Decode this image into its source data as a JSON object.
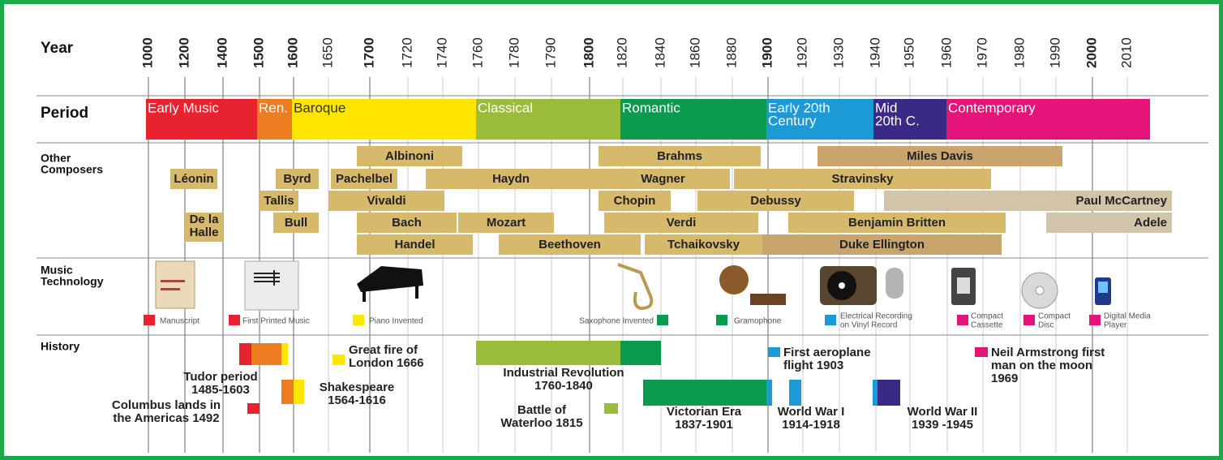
{
  "row_labels": {
    "year": "Year",
    "period": "Period",
    "composers": [
      "Other",
      "Composers"
    ],
    "technology": [
      "Music",
      "Technology"
    ],
    "history": "History"
  },
  "years": [
    1000,
    1200,
    1400,
    1500,
    1600,
    1650,
    1700,
    1720,
    1740,
    1760,
    1780,
    1790,
    1800,
    1820,
    1840,
    1860,
    1880,
    1900,
    1920,
    1930,
    1940,
    1950,
    1960,
    1970,
    1980,
    1990,
    2000,
    2010
  ],
  "periods": [
    {
      "label": [
        "Early Music"
      ],
      "color": "#e8222e"
    },
    {
      "label": [
        "Ren."
      ],
      "color": "#ee7d22"
    },
    {
      "label": [
        "Baroque"
      ],
      "color": "#ffe500"
    },
    {
      "label": [
        "Classical"
      ],
      "color": "#9bbb3a"
    },
    {
      "label": [
        "Romantic"
      ],
      "color": "#0a9b4e"
    },
    {
      "label": [
        "Early 20th",
        "Century"
      ],
      "color": "#1b9ad6"
    },
    {
      "label": [
        "Mid",
        "20th C."
      ],
      "color": "#3a2a85"
    },
    {
      "label": [
        "Contemporary"
      ],
      "color": "#e5147a"
    }
  ],
  "composers": [
    {
      "label": [
        "Albinoni"
      ],
      "color": "#d6b96b"
    },
    {
      "label": [
        "Brahms"
      ],
      "color": "#d6b96b"
    },
    {
      "label": [
        "Miles Davis"
      ],
      "color": "#c9a46c"
    },
    {
      "label": [
        "Léonin"
      ],
      "color": "#d6b96b"
    },
    {
      "label": [
        "Byrd"
      ],
      "color": "#d6b96b"
    },
    {
      "label": [
        "Pachelbel"
      ],
      "color": "#d6b96b"
    },
    {
      "label": [
        "Haydn"
      ],
      "color": "#d6b96b"
    },
    {
      "label": [
        "Wagner"
      ],
      "color": "#d6b96b"
    },
    {
      "label": [
        "Stravinsky"
      ],
      "color": "#d6b96b"
    },
    {
      "label": [
        "Tallis"
      ],
      "color": "#d6b96b"
    },
    {
      "label": [
        "Vivaldi"
      ],
      "color": "#d6b96b"
    },
    {
      "label": [
        "Chopin"
      ],
      "color": "#d6b96b"
    },
    {
      "label": [
        "Debussy"
      ],
      "color": "#d6b96b"
    },
    {
      "label": [
        "Paul McCartney"
      ],
      "color": "#d2c4a8"
    },
    {
      "label": [
        "De la",
        "Halle"
      ],
      "color": "#d6b96b"
    },
    {
      "label": [
        "Bull"
      ],
      "color": "#d6b96b"
    },
    {
      "label": [
        "Bach"
      ],
      "color": "#d6b96b"
    },
    {
      "label": [
        "Mozart"
      ],
      "color": "#d6b96b"
    },
    {
      "label": [
        "Verdi"
      ],
      "color": "#d6b96b"
    },
    {
      "label": [
        "Benjamin Britten"
      ],
      "color": "#d6b96b"
    },
    {
      "label": [
        "Adele"
      ],
      "color": "#d2c4a8"
    },
    {
      "label": [
        "Handel"
      ],
      "color": "#d6b96b"
    },
    {
      "label": [
        "Beethoven"
      ],
      "color": "#d6b96b"
    },
    {
      "label": [
        "Tchaikovsky"
      ],
      "color": "#d6b96b"
    },
    {
      "label": [
        "Duke Ellington"
      ],
      "color": "#c9a46c"
    }
  ],
  "technology": [
    {
      "label": [
        "Manuscript"
      ],
      "color": "#e8222e"
    },
    {
      "label": [
        "First Printed Music"
      ],
      "color": "#e8222e"
    },
    {
      "label": [
        "Piano Invented"
      ],
      "color": "#ffe500"
    },
    {
      "label": [
        "Saxophone Invented"
      ],
      "color": "#0a9b4e"
    },
    {
      "label": [
        "Gramophone"
      ],
      "color": "#0a9b4e"
    },
    {
      "label": [
        "Electrical Recording",
        "on Vinyl Record"
      ],
      "color": "#1b9ad6"
    },
    {
      "label": [
        "Compact",
        "Cassette"
      ],
      "color": "#e5147a"
    },
    {
      "label": [
        "Compact",
        "Disc"
      ],
      "color": "#e5147a"
    },
    {
      "label": [
        "Digital Media",
        "Player"
      ],
      "color": "#e5147a"
    }
  ],
  "history": [
    {
      "label": [
        "Tudor period",
        "1485-1603"
      ]
    },
    {
      "label": [
        "Columbus lands in",
        "the Americas 1492"
      ]
    },
    {
      "label": [
        "Great fire of",
        "London 1666"
      ]
    },
    {
      "label": [
        "Shakespeare",
        "1564-1616"
      ]
    },
    {
      "label": [
        "Industrial Revolution",
        "1760-1840"
      ]
    },
    {
      "label": [
        "Battle of",
        "Waterloo 1815"
      ]
    },
    {
      "label": [
        "Victorian Era",
        "1837-1901"
      ]
    },
    {
      "label": [
        "First aeroplane",
        "flight 1903"
      ]
    },
    {
      "label": [
        "World War I",
        "1914-1918"
      ]
    },
    {
      "label": [
        "World War II",
        "1939 -1945"
      ]
    },
    {
      "label": [
        "Neil Armstrong first",
        "man on the moon",
        "1969"
      ]
    }
  ]
}
